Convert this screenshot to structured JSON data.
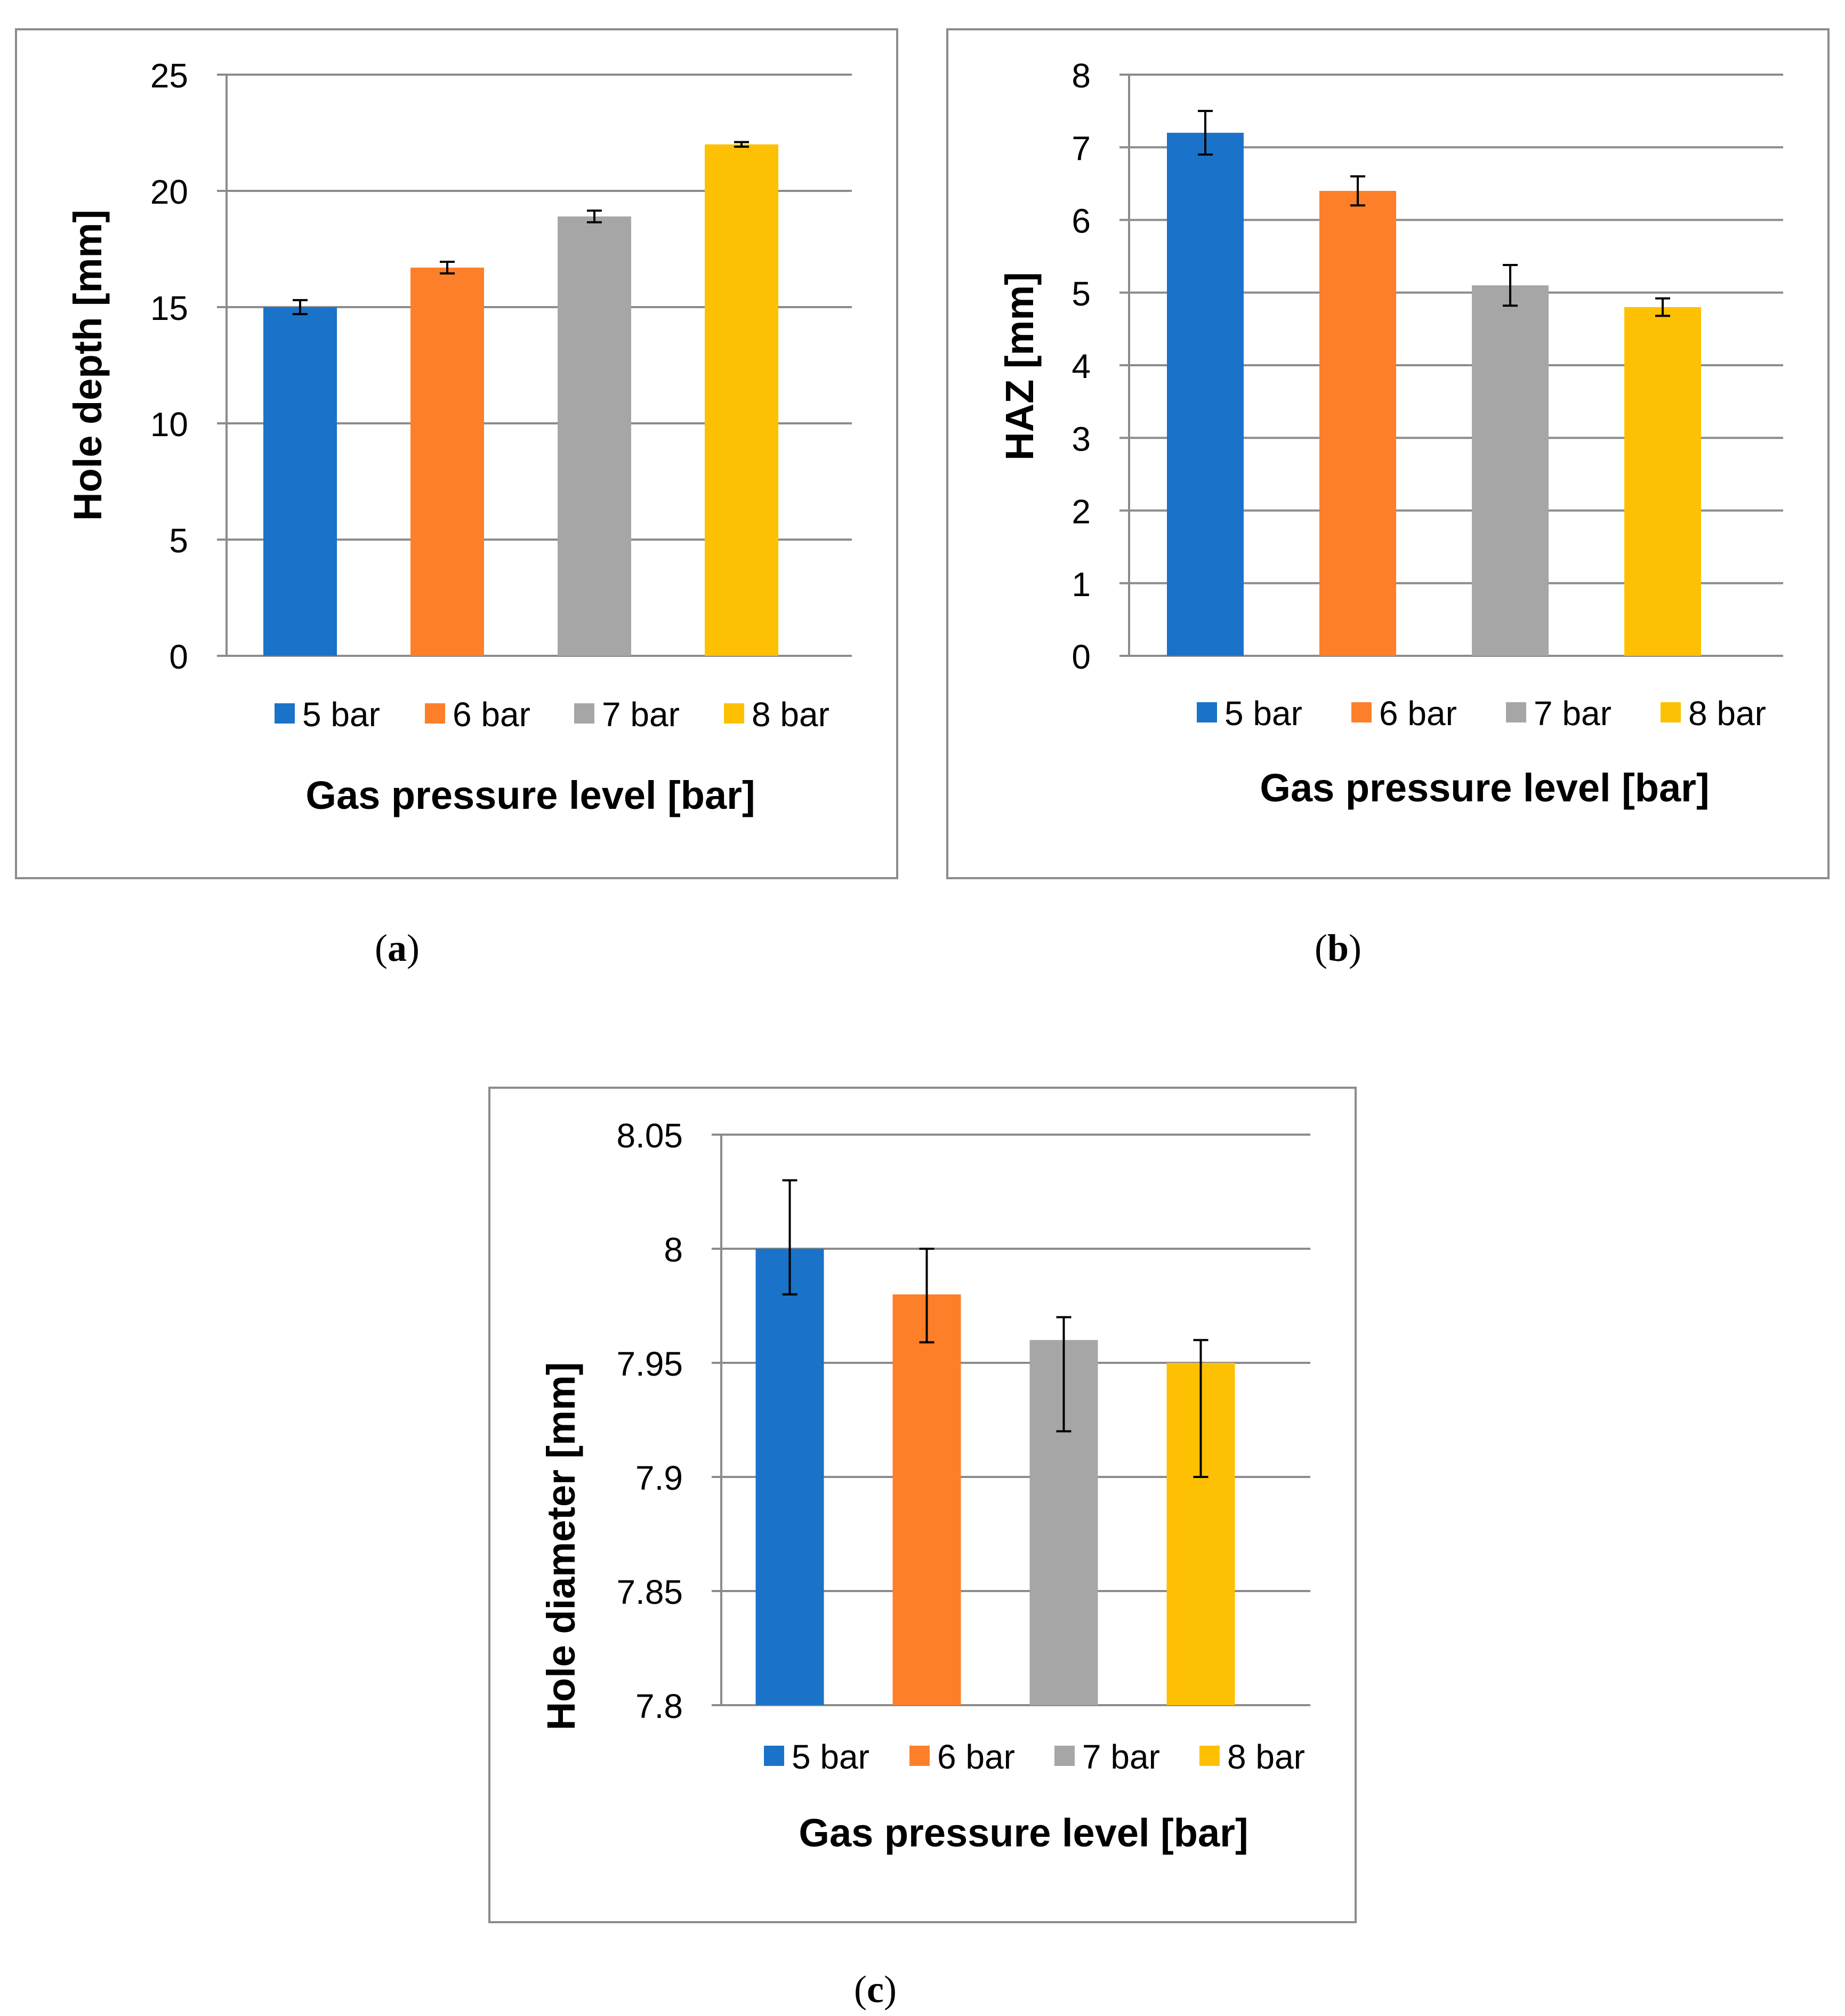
{
  "colors": {
    "series": [
      "#1a73c8",
      "#fe7f29",
      "#a6a6a6",
      "#fec002"
    ],
    "grid": "#8c8c8c",
    "axis_text": "#000000",
    "frame": "#8c8c8c",
    "error_bar": "#000000"
  },
  "chart_data": [
    {
      "type": "bar",
      "panel_label": "a",
      "categories": [
        "5 bar",
        "6 bar",
        "7 bar",
        "8 bar"
      ],
      "values": [
        15,
        16.7,
        18.9,
        22
      ],
      "errors": [
        0.3,
        0.25,
        0.25,
        0.1
      ],
      "xlabel": "Gas pressure level [bar]",
      "ylabel": "Hole depth [mm]",
      "ylim": [
        0,
        25
      ],
      "yticks": [
        0,
        5,
        10,
        15,
        20,
        25
      ],
      "ytick_labels": [
        "0",
        "5",
        "10",
        "15",
        "20",
        "25"
      ],
      "legend": [
        "5 bar",
        "6 bar",
        "7 bar",
        "8 bar"
      ],
      "legend_position": "bottom",
      "grid": true
    },
    {
      "type": "bar",
      "panel_label": "b",
      "categories": [
        "5 bar",
        "6 bar",
        "7 bar",
        "8 bar"
      ],
      "values": [
        7.2,
        6.4,
        5.1,
        4.8
      ],
      "errors": [
        0.3,
        0.2,
        0.28,
        0.12
      ],
      "xlabel": "Gas pressure level [bar]",
      "ylabel": "HAZ [mm]",
      "ylim": [
        0,
        8
      ],
      "yticks": [
        0,
        1,
        2,
        3,
        4,
        5,
        6,
        7,
        8
      ],
      "ytick_labels": [
        "0",
        "1",
        "2",
        "3",
        "4",
        "5",
        "6",
        "7",
        "8"
      ],
      "legend": [
        "5 bar",
        "6 bar",
        "7 bar",
        "8 bar"
      ],
      "legend_position": "bottom",
      "grid": true
    },
    {
      "type": "bar",
      "panel_label": "c",
      "categories": [
        "5 bar",
        "6 bar",
        "7 bar",
        "8 bar"
      ],
      "values": [
        8.0,
        7.98,
        7.96,
        7.95
      ],
      "err_low": [
        0.02,
        0.021,
        0.04,
        0.05
      ],
      "err_high": [
        0.03,
        0.02,
        0.01,
        0.01
      ],
      "xlabel": "Gas pressure level [bar]",
      "ylabel": "Hole diameter [mm]",
      "ylim": [
        7.8,
        8.05
      ],
      "yticks": [
        7.8,
        7.85,
        7.9,
        7.95,
        8.0,
        8.05
      ],
      "ytick_labels": [
        "7.8",
        "7.85",
        "7.9",
        "7.95",
        "8",
        "8.05"
      ],
      "legend": [
        "5 bar",
        "6 bar",
        "7 bar",
        "8 bar"
      ],
      "legend_position": "bottom",
      "grid": true
    }
  ]
}
